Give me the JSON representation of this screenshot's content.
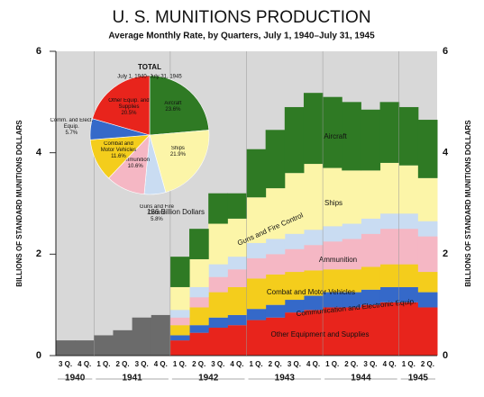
{
  "chart_data": {
    "type": "stacked-step-area",
    "title": "U. S. MUNITIONS PRODUCTION",
    "subtitle": "Average Monthly Rate, by Quarters, July 1, 1940–July 31, 1945",
    "y_label": "BILLIONS OF STANDARD MUNITIONS DOLLARS",
    "categories": [
      "3 Q.",
      "4 Q.",
      "1 Q.",
      "2 Q.",
      "3 Q.",
      "4 Q.",
      "1 Q.",
      "2 Q.",
      "3 Q.",
      "4 Q.",
      "1 Q.",
      "2 Q.",
      "3 Q.",
      "4 Q.",
      "1 Q.",
      "2 Q.",
      "3 Q.",
      "4 Q.",
      "1 Q.",
      "2 Q."
    ],
    "years": [
      "1940",
      "1941",
      "1942",
      "1943",
      "1944",
      "1945"
    ],
    "ylim": [
      0,
      6
    ],
    "yticks": [
      0,
      2,
      4,
      6
    ],
    "series": [
      {
        "color": "#6b6b6b",
        "values": [
          0.3,
          0.3,
          0.4,
          0.5,
          0.75,
          0.8,
          null,
          null,
          null,
          null,
          null,
          null,
          null,
          null,
          null,
          null,
          null,
          null,
          null,
          null
        ]
      },
      {
        "name": "Other Equipment and Supplies",
        "color": "#e8241c",
        "values": [
          null,
          null,
          null,
          null,
          null,
          null,
          0.3,
          0.45,
          0.55,
          0.6,
          0.7,
          0.75,
          0.85,
          0.9,
          0.95,
          0.95,
          1.0,
          1.05,
          1.05,
          0.95
        ]
      },
      {
        "name": "Communication and Electronic Equip.",
        "color": "#3569c9",
        "values": [
          null,
          null,
          null,
          null,
          null,
          null,
          0.1,
          0.15,
          0.2,
          0.2,
          0.22,
          0.25,
          0.25,
          0.28,
          0.3,
          0.3,
          0.3,
          0.3,
          0.3,
          0.3
        ]
      },
      {
        "name": "Combat and Motor Vehicles",
        "color": "#f4cd1c",
        "values": [
          null,
          null,
          null,
          null,
          null,
          null,
          0.2,
          0.35,
          0.5,
          0.55,
          0.6,
          0.6,
          0.55,
          0.5,
          0.45,
          0.45,
          0.45,
          0.45,
          0.45,
          0.4
        ]
      },
      {
        "name": "Ammunition",
        "color": "#f5b7c4",
        "values": [
          null,
          null,
          null,
          null,
          null,
          null,
          0.15,
          0.2,
          0.3,
          0.35,
          0.4,
          0.4,
          0.45,
          0.5,
          0.55,
          0.6,
          0.65,
          0.7,
          0.7,
          0.7
        ]
      },
      {
        "name": "Guns and Fire Control",
        "color": "#c9dcf2",
        "values": [
          null,
          null,
          null,
          null,
          null,
          null,
          0.15,
          0.2,
          0.25,
          0.25,
          0.3,
          0.3,
          0.3,
          0.3,
          0.3,
          0.3,
          0.3,
          0.3,
          0.3,
          0.3
        ]
      },
      {
        "name": "Ships",
        "color": "#fcf5a8",
        "values": [
          null,
          null,
          null,
          null,
          null,
          null,
          0.45,
          0.55,
          0.8,
          0.75,
          0.9,
          1.0,
          1.2,
          1.3,
          1.15,
          1.05,
          0.95,
          1.0,
          0.95,
          0.85
        ]
      },
      {
        "name": "Aircraft",
        "color": "#2f7a24",
        "values": [
          null,
          null,
          null,
          null,
          null,
          null,
          0.6,
          0.6,
          0.6,
          0.5,
          0.95,
          1.15,
          1.3,
          1.4,
          1.4,
          1.35,
          1.2,
          1.2,
          1.15,
          1.15
        ]
      }
    ],
    "pie": {
      "type": "pie",
      "title": "TOTAL",
      "subtitle": "July 1, 1940–July 31, 1945",
      "total_label": "186 Billion Dollars",
      "categories": [
        "Aircraft",
        "Ships",
        "Guns and Fire Control",
        "Ammunition",
        "Combat and Motor Vehicles",
        "Comm. and Elect. Equip.",
        "Other Equip. and Supplies"
      ],
      "values": [
        23.6,
        21.9,
        5.8,
        10.6,
        11.6,
        5.7,
        20.5
      ],
      "value_labels": [
        "23.6%",
        "21.9%",
        "5.8%",
        "10.6%",
        "11.6%",
        "5.7%",
        "20.5%"
      ],
      "colors": [
        "#2f7a24",
        "#fcf5a8",
        "#c9dcf2",
        "#f5b7c4",
        "#f4cd1c",
        "#3569c9",
        "#e8241c"
      ]
    }
  }
}
